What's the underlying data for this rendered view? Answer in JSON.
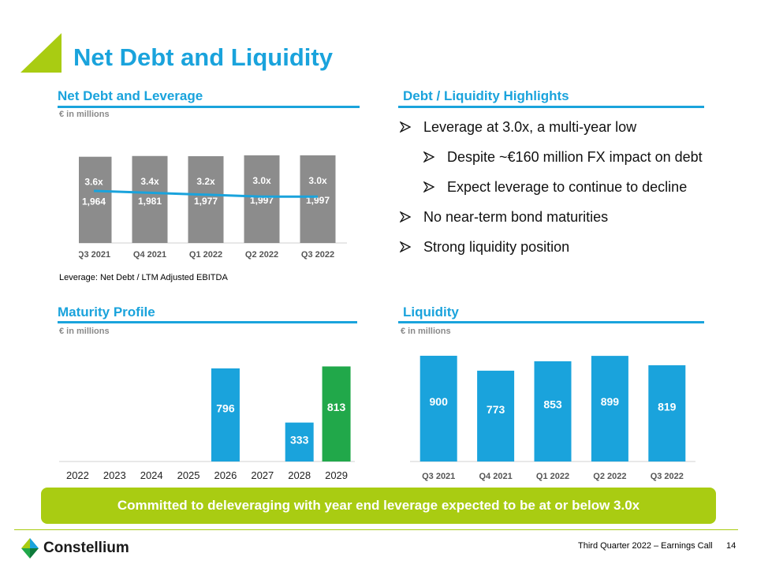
{
  "page": {
    "title": "Net Debt and Liquidity",
    "banner": "Committed to deleveraging with year end leverage expected to be at or below 3.0x",
    "footer_text": "Third Quarter 2022 – Earnings Call",
    "page_number": "14",
    "logo_text": "Constellium"
  },
  "sections": {
    "net_debt": {
      "title": "Net Debt and Leverage",
      "unit": "€ in millions",
      "note": "Leverage: Net Debt / LTM Adjusted EBITDA"
    },
    "highlights": {
      "title": "Debt / Liquidity Highlights"
    },
    "maturity": {
      "title": "Maturity Profile",
      "unit": "€ in millions"
    },
    "liquidity": {
      "title": "Liquidity",
      "unit": "€ in millions"
    }
  },
  "highlights": {
    "items": [
      {
        "text": "Leverage at 3.0x, a multi-year low",
        "level": 1
      },
      {
        "text": "Despite ~€160 million FX impact on debt",
        "level": 2
      },
      {
        "text": "Expect leverage to continue to decline",
        "level": 2
      },
      {
        "text": "No near-term bond maturities",
        "level": 1
      },
      {
        "text": "Strong liquidity position",
        "level": 1
      }
    ]
  },
  "colors": {
    "accent_blue": "#1aa3dc",
    "bar_gray": "#8c8c8c",
    "green": "#21a84a",
    "lime": "#a9cc12"
  },
  "chart_data": [
    {
      "type": "bar",
      "name": "net_debt_leverage",
      "categories": [
        "Q3 2021",
        "Q4 2021",
        "Q1 2022",
        "Q2 2022",
        "Q3 2022"
      ],
      "values": [
        1964,
        1981,
        1977,
        1997,
        1997
      ],
      "labels": [
        "1,964",
        "1,981",
        "1,977",
        "1,997",
        "1,997"
      ],
      "leverage": [
        3.6,
        3.4,
        3.2,
        3.0,
        3.0
      ],
      "leverage_labels": [
        "3.6x",
        "3.4x",
        "3.2x",
        "3.0x",
        "3.0x"
      ],
      "ylim": [
        0,
        2300
      ],
      "grid": false
    },
    {
      "type": "bar",
      "name": "maturity_profile",
      "categories": [
        "2022",
        "2023",
        "2024",
        "2025",
        "2026",
        "2027",
        "2028",
        "2029"
      ],
      "values": [
        0,
        0,
        0,
        0,
        796,
        0,
        333,
        813
      ],
      "labels": [
        "",
        "",
        "",
        "",
        "796",
        "",
        "333",
        "813"
      ],
      "ylim": [
        0,
        850
      ],
      "grid": false
    },
    {
      "type": "bar",
      "name": "liquidity",
      "categories": [
        "Q3 2021",
        "Q4 2021",
        "Q1 2022",
        "Q2 2022",
        "Q3 2022"
      ],
      "values": [
        900,
        773,
        853,
        899,
        819
      ],
      "labels": [
        "900",
        "773",
        "853",
        "899",
        "819"
      ],
      "ylim": [
        0,
        940
      ],
      "grid": false
    }
  ]
}
